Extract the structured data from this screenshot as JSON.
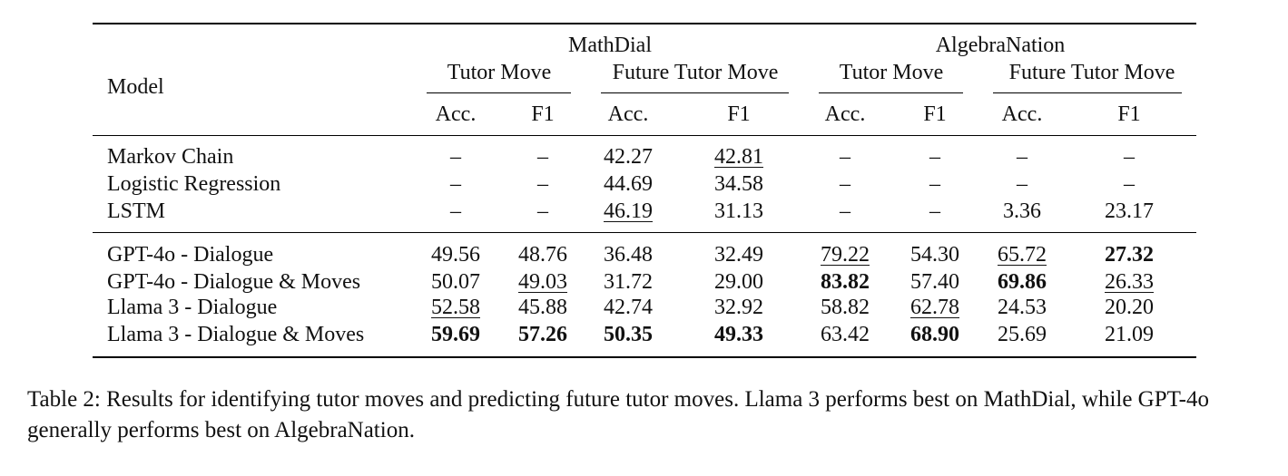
{
  "table": {
    "model_header": "Model",
    "datasets": [
      {
        "name": "MathDial",
        "groups": [
          "Tutor Move",
          "Future Tutor Move"
        ]
      },
      {
        "name": "AlgebraNation",
        "groups": [
          "Tutor Move",
          "Future Tutor Move"
        ]
      }
    ],
    "metrics": [
      "Acc.",
      "F1",
      "Acc.",
      "F1",
      "Acc.",
      "F1",
      "Acc.",
      "F1"
    ],
    "sections": [
      [
        {
          "model": "Markov Chain",
          "cells": [
            {
              "v": "–"
            },
            {
              "v": "–"
            },
            {
              "v": "42.27"
            },
            {
              "v": "42.81",
              "u": true
            },
            {
              "v": "–"
            },
            {
              "v": "–"
            },
            {
              "v": "–"
            },
            {
              "v": "–"
            }
          ]
        },
        {
          "model": "Logistic Regression",
          "cells": [
            {
              "v": "–"
            },
            {
              "v": "–"
            },
            {
              "v": "44.69"
            },
            {
              "v": "34.58"
            },
            {
              "v": "–"
            },
            {
              "v": "–"
            },
            {
              "v": "–"
            },
            {
              "v": "–"
            }
          ]
        },
        {
          "model": "LSTM",
          "cells": [
            {
              "v": "–"
            },
            {
              "v": "–"
            },
            {
              "v": "46.19",
              "u": true
            },
            {
              "v": "31.13"
            },
            {
              "v": "–"
            },
            {
              "v": "–"
            },
            {
              "v": "3.36"
            },
            {
              "v": "23.17"
            }
          ]
        }
      ],
      [
        {
          "model": "GPT-4o - Dialogue",
          "cells": [
            {
              "v": "49.56"
            },
            {
              "v": "48.76"
            },
            {
              "v": "36.48"
            },
            {
              "v": "32.49"
            },
            {
              "v": "79.22",
              "u": true
            },
            {
              "v": "54.30"
            },
            {
              "v": "65.72",
              "u": true
            },
            {
              "v": "27.32",
              "b": true
            }
          ]
        },
        {
          "model": "GPT-4o - Dialogue & Moves",
          "cells": [
            {
              "v": "50.07"
            },
            {
              "v": "49.03",
              "u": true
            },
            {
              "v": "31.72"
            },
            {
              "v": "29.00"
            },
            {
              "v": "83.82",
              "b": true
            },
            {
              "v": "57.40"
            },
            {
              "v": "69.86",
              "b": true
            },
            {
              "v": "26.33",
              "u": true
            }
          ]
        },
        {
          "model": "Llama 3 - Dialogue",
          "cells": [
            {
              "v": "52.58",
              "u": true
            },
            {
              "v": "45.88"
            },
            {
              "v": "42.74"
            },
            {
              "v": "32.92"
            },
            {
              "v": "58.82"
            },
            {
              "v": "62.78",
              "u": true
            },
            {
              "v": "24.53"
            },
            {
              "v": "20.20"
            }
          ]
        },
        {
          "model": "Llama 3 - Dialogue & Moves",
          "cells": [
            {
              "v": "59.69",
              "b": true
            },
            {
              "v": "57.26",
              "b": true
            },
            {
              "v": "50.35",
              "b": true
            },
            {
              "v": "49.33",
              "b": true
            },
            {
              "v": "63.42"
            },
            {
              "v": "68.90",
              "b": true
            },
            {
              "v": "25.69"
            },
            {
              "v": "21.09"
            }
          ]
        }
      ]
    ]
  },
  "caption": "Table 2: Results for identifying tutor moves and predicting future tutor moves. Llama 3 performs best on MathDial, while GPT-4o generally performs best on AlgebraNation."
}
